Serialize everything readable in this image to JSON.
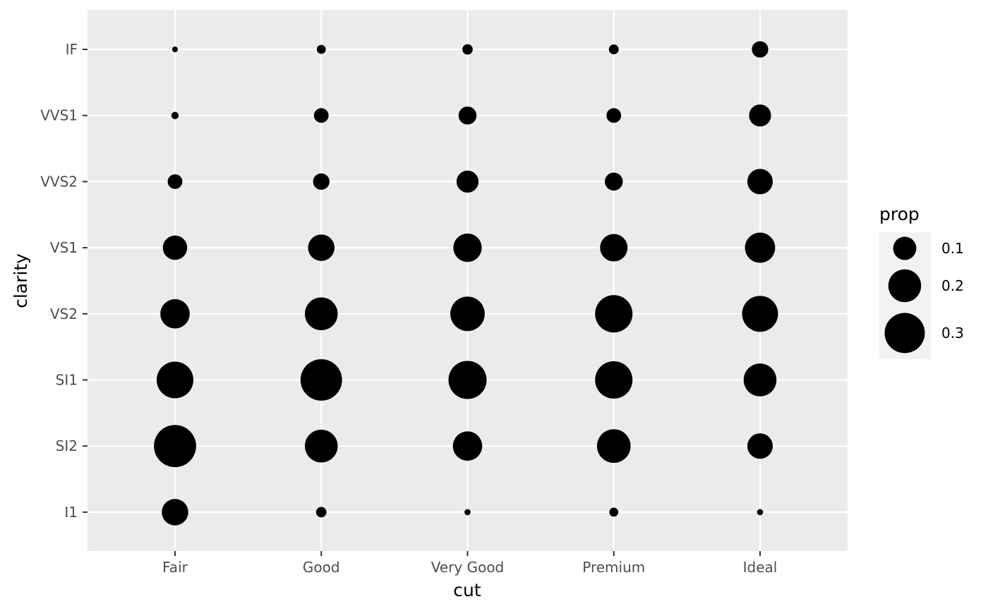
{
  "chart_data": {
    "type": "scatter",
    "subtype": "bubble",
    "xlabel": "cut",
    "ylabel": "clarity",
    "x_categories": [
      "Fair",
      "Good",
      "Very Good",
      "Premium",
      "Ideal"
    ],
    "y_categories": [
      "I1",
      "SI2",
      "SI1",
      "VS2",
      "VS1",
      "VVS2",
      "VVS1",
      "IF"
    ],
    "size_variable": "prop",
    "grid": true,
    "panel_background": "#ebebeb",
    "grid_color": "#ffffff",
    "point_color": "#000000",
    "legend": {
      "title": "prop",
      "placement": "right",
      "values": [
        0.1,
        0.2,
        0.3
      ],
      "labels": [
        "0.1",
        "0.2",
        "0.3"
      ]
    },
    "points": [
      {
        "cut": "Fair",
        "clarity": "I1",
        "prop": 0.13
      },
      {
        "cut": "Fair",
        "clarity": "SI2",
        "prop": 0.33
      },
      {
        "cut": "Fair",
        "clarity": "SI1",
        "prop": 0.25
      },
      {
        "cut": "Fair",
        "clarity": "VS2",
        "prop": 0.16
      },
      {
        "cut": "Fair",
        "clarity": "VS1",
        "prop": 0.11
      },
      {
        "cut": "Fair",
        "clarity": "VVS2",
        "prop": 0.04
      },
      {
        "cut": "Fair",
        "clarity": "VVS1",
        "prop": 0.01
      },
      {
        "cut": "Fair",
        "clarity": "IF",
        "prop": 0.006
      },
      {
        "cut": "Good",
        "clarity": "I1",
        "prop": 0.02
      },
      {
        "cut": "Good",
        "clarity": "SI2",
        "prop": 0.2
      },
      {
        "cut": "Good",
        "clarity": "SI1",
        "prop": 0.32
      },
      {
        "cut": "Good",
        "clarity": "VS2",
        "prop": 0.2
      },
      {
        "cut": "Good",
        "clarity": "VS1",
        "prop": 0.13
      },
      {
        "cut": "Good",
        "clarity": "VVS2",
        "prop": 0.05
      },
      {
        "cut": "Good",
        "clarity": "VVS1",
        "prop": 0.04
      },
      {
        "cut": "Good",
        "clarity": "IF",
        "prop": 0.015
      },
      {
        "cut": "Very Good",
        "clarity": "I1",
        "prop": 0.007
      },
      {
        "cut": "Very Good",
        "clarity": "SI2",
        "prop": 0.16
      },
      {
        "cut": "Very Good",
        "clarity": "SI1",
        "prop": 0.27
      },
      {
        "cut": "Very Good",
        "clarity": "VS2",
        "prop": 0.22
      },
      {
        "cut": "Very Good",
        "clarity": "VS1",
        "prop": 0.15
      },
      {
        "cut": "Very Good",
        "clarity": "VVS2",
        "prop": 0.09
      },
      {
        "cut": "Very Good",
        "clarity": "VVS1",
        "prop": 0.06
      },
      {
        "cut": "Very Good",
        "clarity": "IF",
        "prop": 0.02
      },
      {
        "cut": "Premium",
        "clarity": "I1",
        "prop": 0.015
      },
      {
        "cut": "Premium",
        "clarity": "SI2",
        "prop": 0.21
      },
      {
        "cut": "Premium",
        "clarity": "SI1",
        "prop": 0.26
      },
      {
        "cut": "Premium",
        "clarity": "VS2",
        "prop": 0.26
      },
      {
        "cut": "Premium",
        "clarity": "VS1",
        "prop": 0.14
      },
      {
        "cut": "Premium",
        "clarity": "VVS2",
        "prop": 0.06
      },
      {
        "cut": "Premium",
        "clarity": "VVS1",
        "prop": 0.04
      },
      {
        "cut": "Premium",
        "clarity": "IF",
        "prop": 0.018
      },
      {
        "cut": "Ideal",
        "clarity": "I1",
        "prop": 0.007
      },
      {
        "cut": "Ideal",
        "clarity": "SI2",
        "prop": 0.12
      },
      {
        "cut": "Ideal",
        "clarity": "SI1",
        "prop": 0.2
      },
      {
        "cut": "Ideal",
        "clarity": "VS2",
        "prop": 0.24
      },
      {
        "cut": "Ideal",
        "clarity": "VS1",
        "prop": 0.17
      },
      {
        "cut": "Ideal",
        "clarity": "VVS2",
        "prop": 0.12
      },
      {
        "cut": "Ideal",
        "clarity": "VVS1",
        "prop": 0.09
      },
      {
        "cut": "Ideal",
        "clarity": "IF",
        "prop": 0.05
      }
    ]
  }
}
